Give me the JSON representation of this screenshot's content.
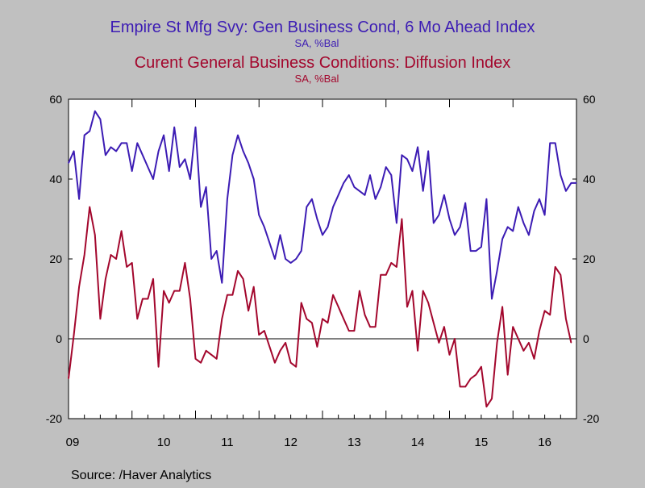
{
  "chart_data": {
    "type": "line",
    "titles": [
      {
        "text": "Empire St Mfg Svy: Gen Business Cond, 6 Mo Ahead Index",
        "sub": "SA, %Bal",
        "color": "#3c1cb4"
      },
      {
        "text": "Curent General Business Conditions: Diffusion Index",
        "sub": "SA, %Bal",
        "color": "#a3072d"
      }
    ],
    "source": "Source:  /Haver Analytics",
    "ylim": [
      -20,
      60
    ],
    "y_ticks": [
      "-20",
      "0",
      "20",
      "40",
      "60"
    ],
    "x_range": [
      2009.0,
      2017.0
    ],
    "year_labels": [
      "09",
      "10",
      "11",
      "12",
      "13",
      "14",
      "15",
      "16"
    ],
    "grid": false,
    "zero_line": true,
    "series": [
      {
        "color": "#3c1cb4",
        "x_start": 2009.0,
        "x_step": 0.08333,
        "values": [
          44,
          47,
          35,
          51,
          52,
          57,
          55,
          46,
          48,
          47,
          49,
          49,
          42,
          49,
          46,
          43,
          40,
          47,
          51,
          42,
          53,
          43,
          45,
          40,
          53,
          33,
          38,
          20,
          22,
          14,
          35,
          46,
          51,
          47,
          44,
          40,
          31,
          28,
          24,
          20,
          26,
          20,
          19,
          20,
          22,
          33,
          35,
          30,
          26,
          28,
          33,
          36,
          39,
          41,
          38,
          37,
          36,
          41,
          35,
          38,
          43,
          41,
          29,
          46,
          45,
          42,
          48,
          37,
          47,
          29,
          31,
          36,
          30,
          26,
          28,
          34,
          22,
          22,
          23,
          35,
          10,
          17,
          25,
          28,
          27,
          33,
          29,
          26,
          32,
          35,
          31,
          49,
          49,
          41,
          37,
          39,
          39
        ]
      },
      {
        "color": "#a3072d",
        "x_start": 2009.0,
        "x_step": 0.08333,
        "values": [
          -10,
          1,
          13,
          21,
          33,
          26,
          5,
          15,
          21,
          20,
          27,
          18,
          19,
          5,
          10,
          10,
          15,
          -7,
          12,
          9,
          12,
          12,
          19,
          10,
          -5,
          -6,
          -3,
          -4,
          -5,
          5,
          11,
          11,
          17,
          15,
          7,
          13,
          1,
          2,
          -2,
          -6,
          -3,
          -1,
          -6,
          -7,
          9,
          5,
          4,
          -2,
          5,
          4,
          11,
          8,
          5,
          2,
          2,
          12,
          6,
          3,
          3,
          16,
          16,
          19,
          18,
          30,
          8,
          12,
          -3,
          12,
          9,
          4,
          -1,
          3,
          -4,
          0,
          -12,
          -12,
          -10,
          -9,
          -7,
          -17,
          -15,
          -1,
          8,
          -9,
          3,
          0,
          -3,
          -1,
          -5,
          2,
          7,
          6,
          18,
          16,
          5,
          -1
        ]
      }
    ]
  }
}
